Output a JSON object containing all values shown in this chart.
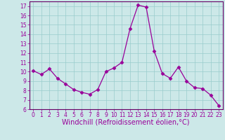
{
  "x": [
    0,
    1,
    2,
    3,
    4,
    5,
    6,
    7,
    8,
    9,
    10,
    11,
    12,
    13,
    14,
    15,
    16,
    17,
    18,
    19,
    20,
    21,
    22,
    23
  ],
  "y": [
    10.1,
    9.7,
    10.3,
    9.3,
    8.7,
    8.1,
    7.8,
    7.6,
    8.1,
    10.0,
    10.4,
    11.0,
    14.6,
    17.1,
    16.9,
    12.2,
    9.8,
    9.3,
    10.5,
    9.0,
    8.3,
    8.2,
    7.5,
    6.4
  ],
  "line_color": "#990099",
  "marker": "D",
  "markersize": 2.5,
  "linewidth": 0.9,
  "xlabel": "Windchill (Refroidissement éolien,°C)",
  "xlabel_fontsize": 7,
  "xtick_labels": [
    "0",
    "1",
    "2",
    "3",
    "4",
    "5",
    "6",
    "7",
    "8",
    "9",
    "10",
    "11",
    "12",
    "13",
    "14",
    "15",
    "16",
    "17",
    "18",
    "19",
    "20",
    "21",
    "22",
    "23"
  ],
  "ylim": [
    6,
    17.5
  ],
  "yticks": [
    6,
    7,
    8,
    9,
    10,
    11,
    12,
    13,
    14,
    15,
    16,
    17
  ],
  "bg_color": "#cce8e8",
  "grid_color": "#99cccc",
  "tick_color": "#990099",
  "tick_fontsize": 5.5,
  "axes_label_color": "#990099",
  "spine_color": "#660066"
}
